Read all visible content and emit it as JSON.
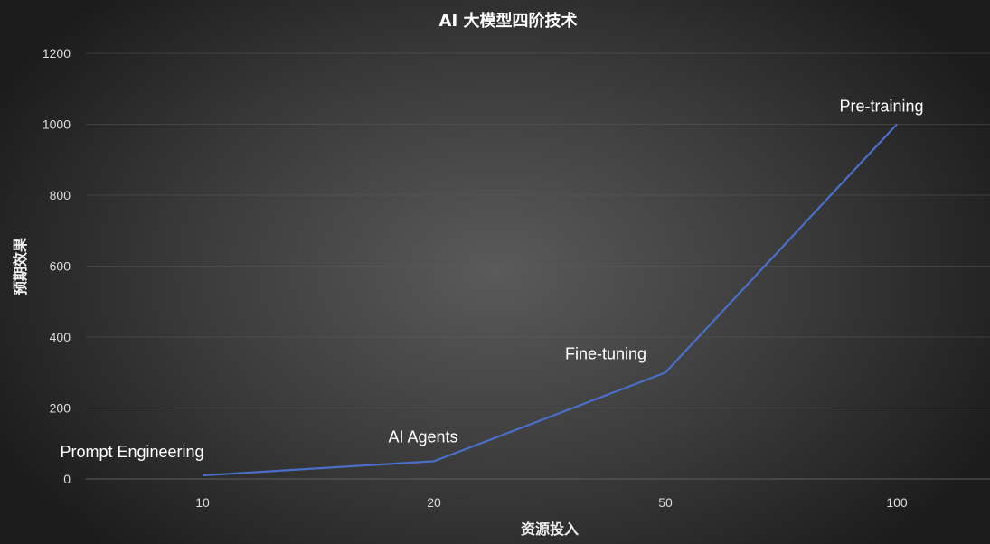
{
  "chart_data": {
    "type": "line",
    "title": "AI 大模型四阶技术",
    "xlabel": "资源投入",
    "ylabel": "预期效果",
    "categories": [
      "10",
      "20",
      "50",
      "100"
    ],
    "series": [
      {
        "values": [
          10,
          50,
          300,
          1000
        ],
        "color": "#4a6fc9"
      }
    ],
    "data_labels": [
      "Prompt Engineering",
      "AI Agents",
      "Fine-tuning",
      "Pre-training"
    ],
    "y_ticks": [
      0,
      200,
      400,
      600,
      800,
      1000,
      1200
    ],
    "ylim": [
      0,
      1200
    ],
    "grid": true,
    "legend": "none"
  }
}
